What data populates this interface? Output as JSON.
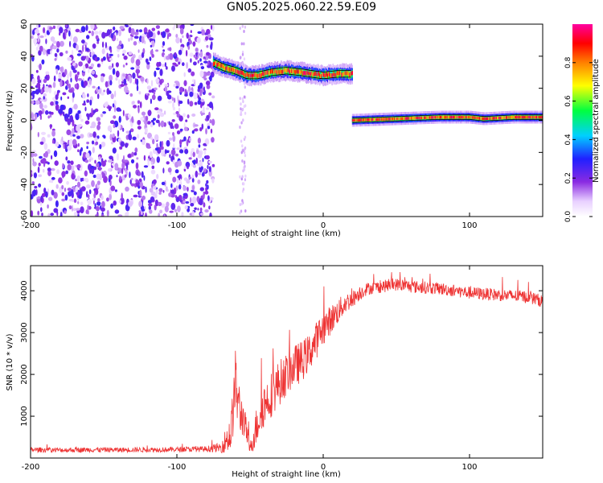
{
  "title": "GN05.2025.060.22.59.E09",
  "chart_data": [
    {
      "type": "heatmap",
      "xlabel": "Height of straight line (km)",
      "ylabel": "Frequency (Hz)",
      "xlim": [
        -200,
        150
      ],
      "ylim": [
        -60,
        60
      ],
      "x_ticks": [
        -200,
        -100,
        0,
        100
      ],
      "y_ticks": [
        -60,
        -40,
        -20,
        0,
        20,
        40,
        60
      ],
      "grid": false,
      "colorbar": {
        "label": "Normalized spectral amplitude",
        "range": [
          0,
          1
        ],
        "ticks": [
          0.0,
          0.2,
          0.4,
          0.6,
          0.8
        ],
        "colormap": "rainbow"
      },
      "regions": [
        {
          "name": "broadband noise",
          "x_range": [
            -200,
            -75
          ],
          "freq_range": [
            -60,
            60
          ],
          "amplitude": 0.15
        },
        {
          "name": "ringing tone",
          "x_range": [
            -75,
            20
          ],
          "freq_center": [
            [
              -75,
              36
            ],
            [
              -68,
              33
            ],
            [
              -60,
              31
            ],
            [
              -52,
              28
            ],
            [
              -45,
              28
            ],
            [
              -35,
              30
            ],
            [
              -25,
              31
            ],
            [
              -15,
              30
            ],
            [
              -8,
              29
            ],
            [
              0,
              28
            ],
            [
              10,
              29
            ],
            [
              20,
              29
            ]
          ],
          "amplitude": 0.95
        },
        {
          "name": "carrier",
          "x_range": [
            20,
            150
          ],
          "freq_center": [
            [
              20,
              0
            ],
            [
              50,
              1
            ],
            [
              80,
              2
            ],
            [
              100,
              2
            ],
            [
              110,
              1
            ],
            [
              130,
              2
            ],
            [
              150,
              2
            ]
          ],
          "amplitude": 1.0
        }
      ]
    },
    {
      "type": "line",
      "xlabel": "Height of straight line (km)",
      "ylabel": "SNR (10 * v/v)",
      "xlim": [
        -200,
        150
      ],
      "ylim": [
        0,
        4600
      ],
      "x_ticks": [
        -200,
        -100,
        0,
        100
      ],
      "y_ticks": [
        1000,
        2000,
        3000,
        4000
      ],
      "grid": false,
      "series": [
        {
          "color": "#ee3333",
          "x": [
            -200,
            -180,
            -160,
            -140,
            -120,
            -100,
            -80,
            -70,
            -63,
            -60,
            -57,
            -54,
            -50,
            -46,
            -42,
            -38,
            -34,
            -30,
            -25,
            -20,
            -15,
            -10,
            -5,
            0,
            5,
            10,
            15,
            20,
            25,
            30,
            40,
            50,
            60,
            80,
            100,
            120,
            140,
            150
          ],
          "y": [
            200,
            190,
            200,
            195,
            200,
            205,
            215,
            250,
            600,
            1800,
            1100,
            900,
            200,
            700,
            1200,
            1400,
            1600,
            1800,
            2000,
            2200,
            2300,
            2500,
            2800,
            3100,
            3300,
            3500,
            3700,
            3800,
            3950,
            4050,
            4100,
            4150,
            4100,
            4050,
            3950,
            3900,
            3850,
            3750
          ],
          "noise": [
            60,
            60,
            60,
            60,
            60,
            60,
            70,
            120,
            500,
            800,
            600,
            400,
            150,
            450,
            550,
            550,
            550,
            550,
            500,
            500,
            500,
            450,
            450,
            400,
            350,
            300,
            250,
            200,
            180,
            150,
            150,
            150,
            150,
            150,
            150,
            150,
            150,
            150
          ]
        }
      ]
    }
  ]
}
